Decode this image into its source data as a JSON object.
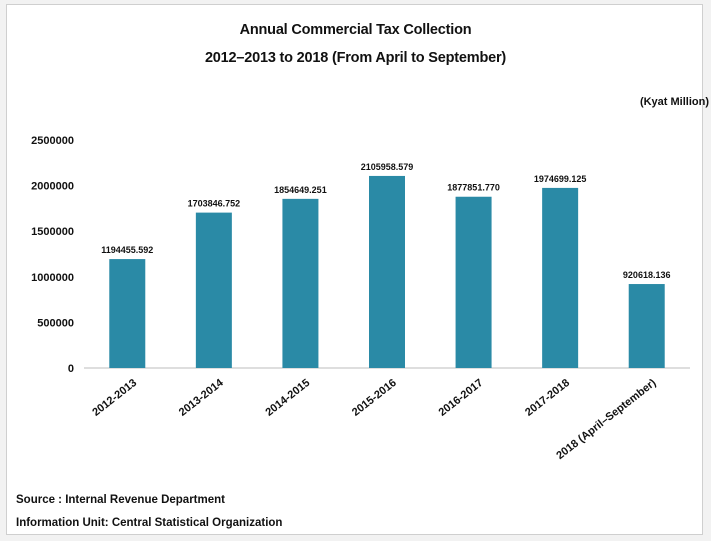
{
  "chart_data": {
    "type": "bar",
    "title": "Annual Commercial Tax Collection",
    "subtitle": "2012–2013 to 2018 (From April to September)",
    "unit_label": "(Kyat Million)",
    "categories": [
      "2012-2013",
      "2013-2014",
      "2014-2015",
      "2015-2016",
      "2016-2017",
      "2017-2018",
      "2018 (April–September)"
    ],
    "values": [
      1194455.592,
      1703846.752,
      1854649.251,
      2105958.579,
      1877851.77,
      1974699.125,
      920618.136
    ],
    "data_labels": [
      "1194455.592",
      "1703846.752",
      "1854649.251",
      "2105958.579",
      "1877851.770",
      "1974699.125",
      "920618.136"
    ],
    "ylim": [
      0,
      2500000
    ],
    "yticks": [
      0,
      500000,
      1000000,
      1500000,
      2000000,
      2500000
    ],
    "ytick_labels": [
      "0",
      "500000",
      "1000000",
      "1500000",
      "2000000",
      "2500000"
    ],
    "bar_color": "#2a8aa6",
    "grid": false,
    "legend": "none"
  },
  "footer": {
    "source": "Source :  Internal Revenue Department",
    "info": "Information Unit:  Central Statistical Organization"
  }
}
